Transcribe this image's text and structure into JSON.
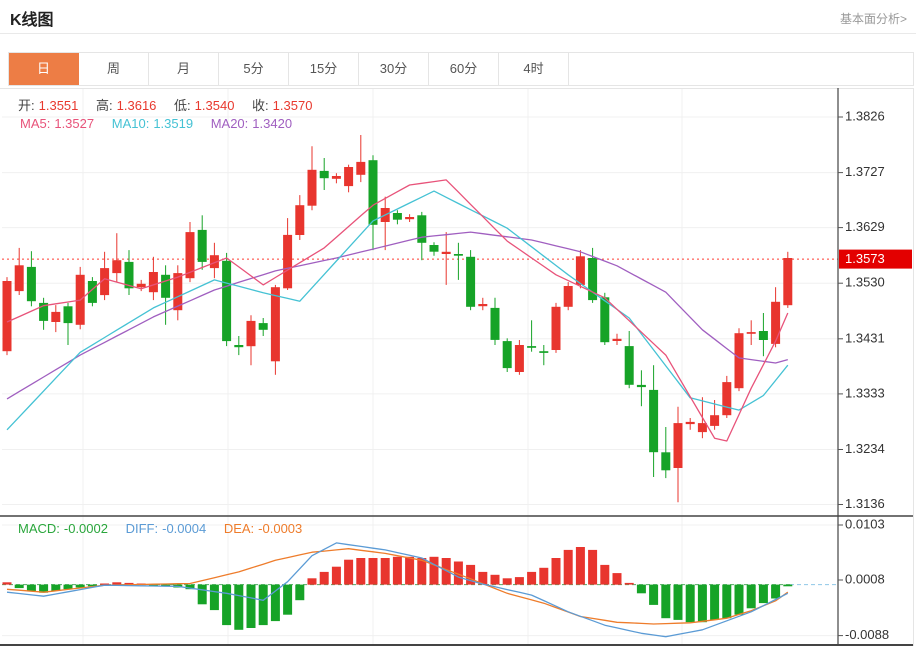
{
  "header": {
    "title": "K线图",
    "analysis_link": "基本面分析>"
  },
  "tabs": {
    "active_index": 0,
    "items": [
      {
        "label": "日",
        "id": "tab-day"
      },
      {
        "label": "周",
        "id": "tab-week"
      },
      {
        "label": "月",
        "id": "tab-month"
      },
      {
        "label": "5分",
        "id": "tab-5min"
      },
      {
        "label": "15分",
        "id": "tab-15min"
      },
      {
        "label": "30分",
        "id": "tab-30min"
      },
      {
        "label": "60分",
        "id": "tab-60min"
      },
      {
        "label": "4时",
        "id": "tab-4hour"
      }
    ]
  },
  "ohlc_legend": {
    "open_label": "开:",
    "open": "1.3551",
    "high_label": "高:",
    "high": "1.3616",
    "low_label": "低:",
    "low": "1.3540",
    "close_label": "收:",
    "close": "1.3570"
  },
  "ma_legend": {
    "ma5_label": "MA5:",
    "ma5": "1.3527",
    "ma10_label": "MA10:",
    "ma10": "1.3519",
    "ma20_label": "MA20:",
    "ma20": "1.3420"
  },
  "macd_legend": {
    "macd_label": "MACD:",
    "macd": "-0.0002",
    "diff_label": "DIFF:",
    "diff": "-0.0004",
    "dea_label": "DEA:",
    "dea": "-0.0003"
  },
  "price_marker": {
    "value": 1.3573,
    "display": "1.3573"
  },
  "colors": {
    "up": "#e8352e",
    "down": "#16a327",
    "ma5": "#e8537a",
    "ma10": "#45c2d4",
    "ma20": "#a05fc0",
    "diff": "#5b9bd5",
    "dea": "#ee7c2b",
    "price_line": "#ff3b30",
    "price_box": "#e30000",
    "grid": "#f0f0f0",
    "axis": "#444444",
    "tick_text": "#333333",
    "zero_dash_green": "#52ab63",
    "zero_dash_blue": "#8fc8e8",
    "tab_active": "#ed7d45",
    "border_light": "#e5e5e5"
  },
  "chart_data": [
    {
      "type": "candlestick",
      "ylabel": "price",
      "y_ticks": [
        1.3826,
        1.3727,
        1.3629,
        1.353,
        1.3431,
        1.3333,
        1.3234,
        1.3136
      ],
      "ylim": [
        1.311,
        1.388
      ],
      "grid": true,
      "current_price": 1.3573,
      "candles_ohlc": [
        [
          1.3409,
          1.3541,
          1.3402,
          1.3534
        ],
        [
          1.3516,
          1.3593,
          1.3509,
          1.3562
        ],
        [
          1.3559,
          1.3587,
          1.3489,
          1.3498
        ],
        [
          1.3495,
          1.3504,
          1.3447,
          1.3463
        ],
        [
          1.3461,
          1.3491,
          1.3443,
          1.3479
        ],
        [
          1.3489,
          1.3495,
          1.342,
          1.3459
        ],
        [
          1.3456,
          1.3559,
          1.3448,
          1.3545
        ],
        [
          1.3534,
          1.3541,
          1.3489,
          1.3495
        ],
        [
          1.3509,
          1.3586,
          1.35,
          1.3557
        ],
        [
          1.3548,
          1.3619,
          1.3532,
          1.3571
        ],
        [
          1.3568,
          1.3589,
          1.3509,
          1.3521
        ],
        [
          1.3523,
          1.3536,
          1.3516,
          1.3529
        ],
        [
          1.3514,
          1.3577,
          1.35,
          1.355
        ],
        [
          1.3545,
          1.3562,
          1.3456,
          1.3504
        ],
        [
          1.3482,
          1.3562,
          1.3464,
          1.3548
        ],
        [
          1.3539,
          1.3639,
          1.3532,
          1.3621
        ],
        [
          1.3625,
          1.3651,
          1.3554,
          1.3568
        ],
        [
          1.3557,
          1.3602,
          1.3539,
          1.358
        ],
        [
          1.357,
          1.3584,
          1.3418,
          1.3427
        ],
        [
          1.342,
          1.3436,
          1.3402,
          1.3416
        ],
        [
          1.3418,
          1.3473,
          1.3384,
          1.3463
        ],
        [
          1.3459,
          1.3468,
          1.3436,
          1.3447
        ],
        [
          1.3391,
          1.3527,
          1.3367,
          1.3523
        ],
        [
          1.3521,
          1.3646,
          1.3518,
          1.3616
        ],
        [
          1.3616,
          1.3687,
          1.3607,
          1.3669
        ],
        [
          1.3668,
          1.3774,
          1.366,
          1.3732
        ],
        [
          1.373,
          1.3753,
          1.3696,
          1.3717
        ],
        [
          1.3716,
          1.3726,
          1.3708,
          1.3721
        ],
        [
          1.3703,
          1.3741,
          1.3692,
          1.3737
        ],
        [
          1.3723,
          1.3794,
          1.371,
          1.3746
        ],
        [
          1.3749,
          1.3758,
          1.3589,
          1.3634
        ],
        [
          1.3639,
          1.3684,
          1.3589,
          1.3664
        ],
        [
          1.3655,
          1.366,
          1.3635,
          1.3643
        ],
        [
          1.3644,
          1.3653,
          1.3639,
          1.3648
        ],
        [
          1.3651,
          1.3657,
          1.3571,
          1.3602
        ],
        [
          1.3598,
          1.3603,
          1.3579,
          1.3586
        ],
        [
          1.3582,
          1.3621,
          1.3527,
          1.3586
        ],
        [
          1.3582,
          1.3602,
          1.3536,
          1.3579
        ],
        [
          1.3577,
          1.3589,
          1.3482,
          1.3488
        ],
        [
          1.3489,
          1.3504,
          1.3482,
          1.3493
        ],
        [
          1.3486,
          1.3504,
          1.342,
          1.3429
        ],
        [
          1.3427,
          1.3432,
          1.3372,
          1.3379
        ],
        [
          1.3372,
          1.3429,
          1.3367,
          1.342
        ],
        [
          1.3418,
          1.3464,
          1.3408,
          1.3415
        ],
        [
          1.3409,
          1.342,
          1.3384,
          1.3406
        ],
        [
          1.3411,
          1.3495,
          1.3406,
          1.3488
        ],
        [
          1.3488,
          1.3532,
          1.3482,
          1.3525
        ],
        [
          1.3527,
          1.3589,
          1.3521,
          1.3578
        ],
        [
          1.3575,
          1.3593,
          1.3495,
          1.35
        ],
        [
          1.3505,
          1.3513,
          1.342,
          1.3425
        ],
        [
          1.3427,
          1.344,
          1.342,
          1.3431
        ],
        [
          1.3418,
          1.3445,
          1.3343,
          1.3349
        ],
        [
          1.3349,
          1.3375,
          1.3311,
          1.3345
        ],
        [
          1.334,
          1.3384,
          1.3185,
          1.3229
        ],
        [
          1.3229,
          1.3274,
          1.3183,
          1.3197
        ],
        [
          1.3201,
          1.331,
          1.314,
          1.3281
        ],
        [
          1.3279,
          1.329,
          1.3269,
          1.3283
        ],
        [
          1.3265,
          1.3327,
          1.3254,
          1.3281
        ],
        [
          1.3276,
          1.3322,
          1.3269,
          1.3295
        ],
        [
          1.3295,
          1.3365,
          1.329,
          1.3354
        ],
        [
          1.3343,
          1.345,
          1.3338,
          1.3441
        ],
        [
          1.344,
          1.3464,
          1.342,
          1.3443
        ],
        [
          1.3445,
          1.3477,
          1.34,
          1.3429
        ],
        [
          1.3422,
          1.3523,
          1.3416,
          1.3497
        ],
        [
          1.3491,
          1.3586,
          1.3486,
          1.3575
        ]
      ],
      "ma5_anchors": [
        [
          0,
          1.3461
        ],
        [
          3,
          1.349
        ],
        [
          6,
          1.35
        ],
        [
          8,
          1.3538
        ],
        [
          11,
          1.352
        ],
        [
          14,
          1.3541
        ],
        [
          18,
          1.3575
        ],
        [
          21,
          1.3527
        ],
        [
          26,
          1.3593
        ],
        [
          30,
          1.3669
        ],
        [
          33,
          1.3705
        ],
        [
          36,
          1.3714
        ],
        [
          41,
          1.3605
        ],
        [
          45,
          1.3545
        ],
        [
          49,
          1.3504
        ],
        [
          54,
          1.3402
        ],
        [
          58,
          1.3254
        ],
        [
          59,
          1.3249
        ],
        [
          61,
          1.3343
        ],
        [
          63,
          1.3427
        ],
        [
          64,
          1.3477
        ]
      ],
      "ma10_anchors": [
        [
          0,
          1.3269
        ],
        [
          6,
          1.3407
        ],
        [
          12,
          1.3486
        ],
        [
          17,
          1.3536
        ],
        [
          21,
          1.3513
        ],
        [
          24,
          1.3498
        ],
        [
          30,
          1.3641
        ],
        [
          35,
          1.3694
        ],
        [
          41,
          1.3628
        ],
        [
          46,
          1.3545
        ],
        [
          51,
          1.3468
        ],
        [
          56,
          1.3326
        ],
        [
          60,
          1.3304
        ],
        [
          62,
          1.333
        ],
        [
          64,
          1.3384
        ]
      ],
      "ma20_anchors": [
        [
          0,
          1.3324
        ],
        [
          6,
          1.3402
        ],
        [
          12,
          1.347
        ],
        [
          17,
          1.3518
        ],
        [
          22,
          1.3552
        ],
        [
          27,
          1.3575
        ],
        [
          34,
          1.3612
        ],
        [
          38,
          1.3621
        ],
        [
          43,
          1.3607
        ],
        [
          47,
          1.3586
        ],
        [
          50,
          1.3561
        ],
        [
          54,
          1.3514
        ],
        [
          57,
          1.3447
        ],
        [
          60,
          1.3397
        ],
        [
          63,
          1.3388
        ],
        [
          64,
          1.3394
        ]
      ]
    },
    {
      "type": "bar",
      "ylabel": "MACD",
      "y_ticks": [
        0.0103,
        0.0008,
        -0.0088
      ],
      "ylim": [
        -0.0105,
        0.0115
      ],
      "grid": true,
      "values": [
        0.0004,
        -0.0006,
        -0.0012,
        -0.0014,
        -0.0011,
        -0.0008,
        -0.0005,
        -0.0003,
        0.0002,
        0.0004,
        0.0003,
        0.0002,
        -0.0002,
        -0.0003,
        -0.0005,
        -0.0008,
        -0.0034,
        -0.0044,
        -0.007,
        -0.0078,
        -0.0075,
        -0.007,
        -0.0063,
        -0.0052,
        -0.0027,
        0.0011,
        0.0022,
        0.0031,
        0.0043,
        0.0046,
        0.0046,
        0.0046,
        0.0048,
        0.0048,
        0.0046,
        0.0048,
        0.0046,
        0.004,
        0.0034,
        0.0022,
        0.0017,
        0.0011,
        0.0013,
        0.0022,
        0.0029,
        0.0046,
        0.006,
        0.0065,
        0.006,
        0.0034,
        0.002,
        0.0003,
        -0.0015,
        -0.0035,
        -0.0058,
        -0.0061,
        -0.0065,
        -0.0065,
        -0.0061,
        -0.0058,
        -0.0052,
        -0.0041,
        -0.0032,
        -0.0024,
        -0.0003
      ],
      "diff_anchors": [
        [
          0,
          -0.0013
        ],
        [
          3,
          -0.002
        ],
        [
          8,
          -0.0001
        ],
        [
          14,
          -0.0003
        ],
        [
          18,
          -0.0015
        ],
        [
          21,
          -0.0027
        ],
        [
          23,
          0.0005
        ],
        [
          25,
          0.005
        ],
        [
          27,
          0.0072
        ],
        [
          31,
          0.006
        ],
        [
          34,
          0.0046
        ],
        [
          37,
          0.0013
        ],
        [
          39,
          0.0001
        ],
        [
          43,
          -0.0018
        ],
        [
          46,
          -0.0047
        ],
        [
          49,
          -0.007
        ],
        [
          52,
          -0.0084
        ],
        [
          54,
          -0.009
        ],
        [
          57,
          -0.0078
        ],
        [
          61,
          -0.0047
        ],
        [
          64,
          -0.0015
        ]
      ],
      "dea_anchors": [
        [
          0,
          -0.0008
        ],
        [
          3,
          -0.0013
        ],
        [
          8,
          -0.0001
        ],
        [
          15,
          0.0002
        ],
        [
          19,
          0.0022
        ],
        [
          22,
          0.0042
        ],
        [
          25,
          0.0056
        ],
        [
          28,
          0.0062
        ],
        [
          31,
          0.0054
        ],
        [
          34,
          0.0042
        ],
        [
          38,
          0.001
        ],
        [
          41,
          -0.0015
        ],
        [
          44,
          -0.0032
        ],
        [
          47,
          -0.0055
        ],
        [
          50,
          -0.0065
        ],
        [
          53,
          -0.0068
        ],
        [
          56,
          -0.0066
        ],
        [
          59,
          -0.0058
        ],
        [
          61,
          -0.0045
        ],
        [
          63,
          -0.0028
        ],
        [
          64,
          -0.0013
        ]
      ]
    }
  ]
}
